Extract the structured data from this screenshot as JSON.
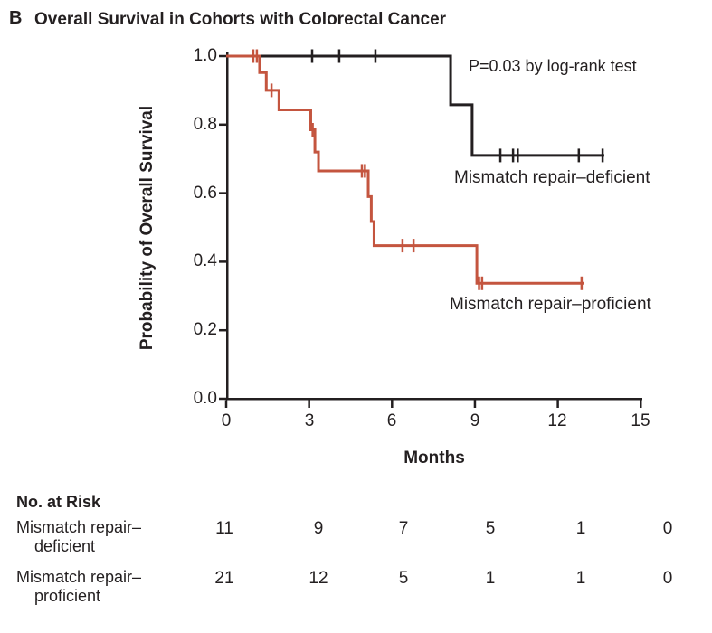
{
  "figure": {
    "panel_label": "B",
    "title": "Overall Survival in Cohorts with Colorectal Cancer"
  },
  "chart_data": {
    "type": "line",
    "subtype": "kaplan_meier_step_curve",
    "title": "Overall Survival in Cohorts with Colorectal Cancer",
    "xlabel": "Months",
    "ylabel": "Probability of Overall Survival",
    "xlim": [
      0,
      15
    ],
    "ylim": [
      0.0,
      1.0
    ],
    "xticks": [
      0,
      3,
      6,
      9,
      12,
      15
    ],
    "xtick_labels": [
      "0",
      "3",
      "6",
      "9",
      "12",
      "15"
    ],
    "yticks": [
      1.0,
      0.8,
      0.6,
      0.4,
      0.2,
      0.0
    ],
    "ytick_labels": [
      "1.0",
      "0.8",
      "0.6",
      "0.4",
      "0.2",
      "0.0"
    ],
    "grid": false,
    "legend_position": "inline-labels",
    "annotation": "P=0.03 by log-rank test",
    "axis_color": "#231f20",
    "series": [
      {
        "name": "Mismatch repair–deficient",
        "color": "#231f20",
        "steps": [
          [
            0,
            1.0
          ],
          [
            8.12,
            1.0
          ],
          [
            8.12,
            0.858
          ],
          [
            8.9,
            0.858
          ],
          [
            8.9,
            0.71
          ],
          [
            13.68,
            0.71
          ]
        ],
        "censor_marks": [
          [
            3.11,
            1.0
          ],
          [
            4.09,
            1.0
          ],
          [
            5.4,
            1.0
          ],
          [
            9.92,
            0.71
          ],
          [
            10.38,
            0.71
          ],
          [
            10.55,
            0.71
          ],
          [
            12.76,
            0.71
          ],
          [
            13.62,
            0.71
          ]
        ]
      },
      {
        "name": "Mismatch repair–proficient",
        "color": "#c4553f",
        "steps": [
          [
            0,
            1.0
          ],
          [
            1.21,
            1.0
          ],
          [
            1.21,
            0.952
          ],
          [
            1.45,
            0.952
          ],
          [
            1.45,
            0.9
          ],
          [
            1.91,
            0.9
          ],
          [
            1.91,
            0.843
          ],
          [
            3.06,
            0.843
          ],
          [
            3.06,
            0.785
          ],
          [
            3.21,
            0.785
          ],
          [
            3.21,
            0.72
          ],
          [
            3.34,
            0.72
          ],
          [
            3.34,
            0.665
          ],
          [
            5.14,
            0.665
          ],
          [
            5.14,
            0.59
          ],
          [
            5.25,
            0.59
          ],
          [
            5.25,
            0.517
          ],
          [
            5.35,
            0.517
          ],
          [
            5.35,
            0.447
          ],
          [
            9.07,
            0.447
          ],
          [
            9.07,
            0.337
          ],
          [
            12.93,
            0.337
          ]
        ],
        "censor_marks": [
          [
            0.98,
            1.0
          ],
          [
            1.11,
            1.0
          ],
          [
            1.64,
            0.9
          ],
          [
            3.13,
            0.785
          ],
          [
            4.91,
            0.665
          ],
          [
            5.02,
            0.665
          ],
          [
            6.38,
            0.447
          ],
          [
            6.78,
            0.447
          ],
          [
            9.15,
            0.337
          ],
          [
            9.26,
            0.337
          ],
          [
            12.86,
            0.337
          ]
        ]
      }
    ]
  },
  "at_risk": {
    "heading": "No. at Risk",
    "time_points": [
      0,
      3,
      6,
      9,
      12,
      15
    ],
    "rows": [
      {
        "label_line1": "Mismatch repair–",
        "label_line2": "deficient",
        "values": [
          "11",
          "9",
          "7",
          "5",
          "1",
          "0"
        ]
      },
      {
        "label_line1": "Mismatch repair–",
        "label_line2": "proficient",
        "values": [
          "21",
          "12",
          "5",
          "1",
          "1",
          "0"
        ]
      }
    ]
  }
}
